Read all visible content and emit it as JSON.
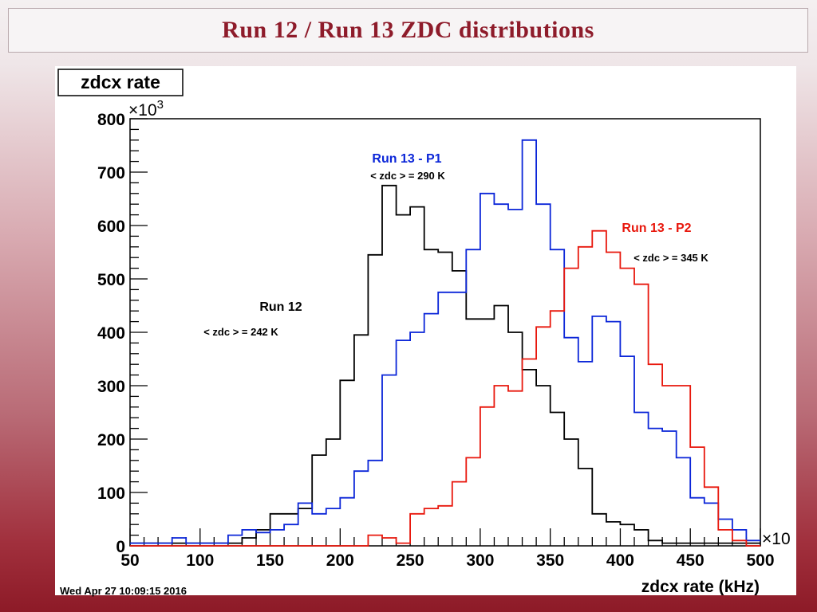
{
  "slide": {
    "title": "Run 12 / Run 13 ZDC distributions",
    "timestamp": "Wed Apr 27 10:09:15 2016"
  },
  "chart_data": {
    "type": "histogram",
    "title": "zdcx rate",
    "xlabel": "zdcx rate (kHz)",
    "ylabel": "",
    "x_multiplier_label": "×10",
    "y_multiplier_label": "×10",
    "y_multiplier_exp": "3",
    "xlim": [
      50,
      500
    ],
    "ylim": [
      0,
      800
    ],
    "x_ticks": [
      50,
      100,
      150,
      200,
      250,
      300,
      350,
      400,
      450,
      500
    ],
    "y_ticks": [
      0,
      100,
      200,
      300,
      400,
      500,
      600,
      700,
      800
    ],
    "bin_width": 10,
    "series": [
      {
        "name": "Run 12",
        "color": "#000000",
        "mean_label": "< zdc > = 242 K",
        "edges": [
          50,
          60,
          70,
          80,
          90,
          100,
          110,
          120,
          130,
          140,
          150,
          160,
          170,
          180,
          190,
          200,
          210,
          220,
          230,
          240,
          250,
          260,
          270,
          280,
          290,
          300,
          310,
          320,
          330,
          340,
          350,
          360,
          370,
          380,
          390,
          400,
          410,
          420,
          430,
          440,
          450,
          460,
          470,
          480,
          490,
          500
        ],
        "values": [
          5,
          5,
          5,
          5,
          5,
          5,
          5,
          5,
          15,
          30,
          60,
          60,
          70,
          170,
          200,
          310,
          395,
          545,
          675,
          620,
          635,
          555,
          550,
          515,
          425,
          425,
          450,
          400,
          330,
          300,
          250,
          200,
          145,
          60,
          45,
          40,
          30,
          10,
          5,
          5,
          5,
          5,
          5,
          5,
          5
        ]
      },
      {
        "name": "Run 13 - P1",
        "color": "#0a25d8",
        "mean_label": "< zdc > = 290 K",
        "edges": [
          50,
          60,
          70,
          80,
          90,
          100,
          110,
          120,
          130,
          140,
          150,
          160,
          170,
          180,
          190,
          200,
          210,
          220,
          230,
          240,
          250,
          260,
          270,
          280,
          290,
          300,
          310,
          320,
          330,
          340,
          350,
          360,
          370,
          380,
          390,
          400,
          410,
          420,
          430,
          440,
          450,
          460,
          470,
          480,
          490,
          500
        ],
        "values": [
          5,
          5,
          5,
          15,
          5,
          5,
          5,
          20,
          30,
          25,
          30,
          40,
          80,
          60,
          70,
          90,
          140,
          160,
          320,
          385,
          400,
          435,
          475,
          475,
          555,
          660,
          640,
          630,
          760,
          640,
          555,
          390,
          345,
          430,
          420,
          355,
          250,
          220,
          215,
          165,
          90,
          80,
          50,
          30,
          10
        ]
      },
      {
        "name": "Run 13 - P2",
        "color": "#e8170c",
        "mean_label": "< zdc > = 345 K",
        "edges": [
          50,
          60,
          70,
          80,
          90,
          100,
          110,
          120,
          130,
          140,
          150,
          160,
          170,
          180,
          190,
          200,
          210,
          220,
          230,
          240,
          250,
          260,
          270,
          280,
          290,
          300,
          310,
          320,
          330,
          340,
          350,
          360,
          370,
          380,
          390,
          400,
          410,
          420,
          430,
          440,
          450,
          460,
          470,
          480,
          490,
          500
        ],
        "values": [
          0,
          0,
          0,
          0,
          0,
          0,
          0,
          0,
          0,
          0,
          0,
          0,
          0,
          0,
          0,
          0,
          0,
          20,
          15,
          5,
          60,
          70,
          75,
          120,
          165,
          260,
          300,
          290,
          350,
          410,
          440,
          520,
          560,
          590,
          550,
          520,
          490,
          340,
          300,
          300,
          185,
          110,
          30,
          10,
          0
        ]
      }
    ]
  }
}
